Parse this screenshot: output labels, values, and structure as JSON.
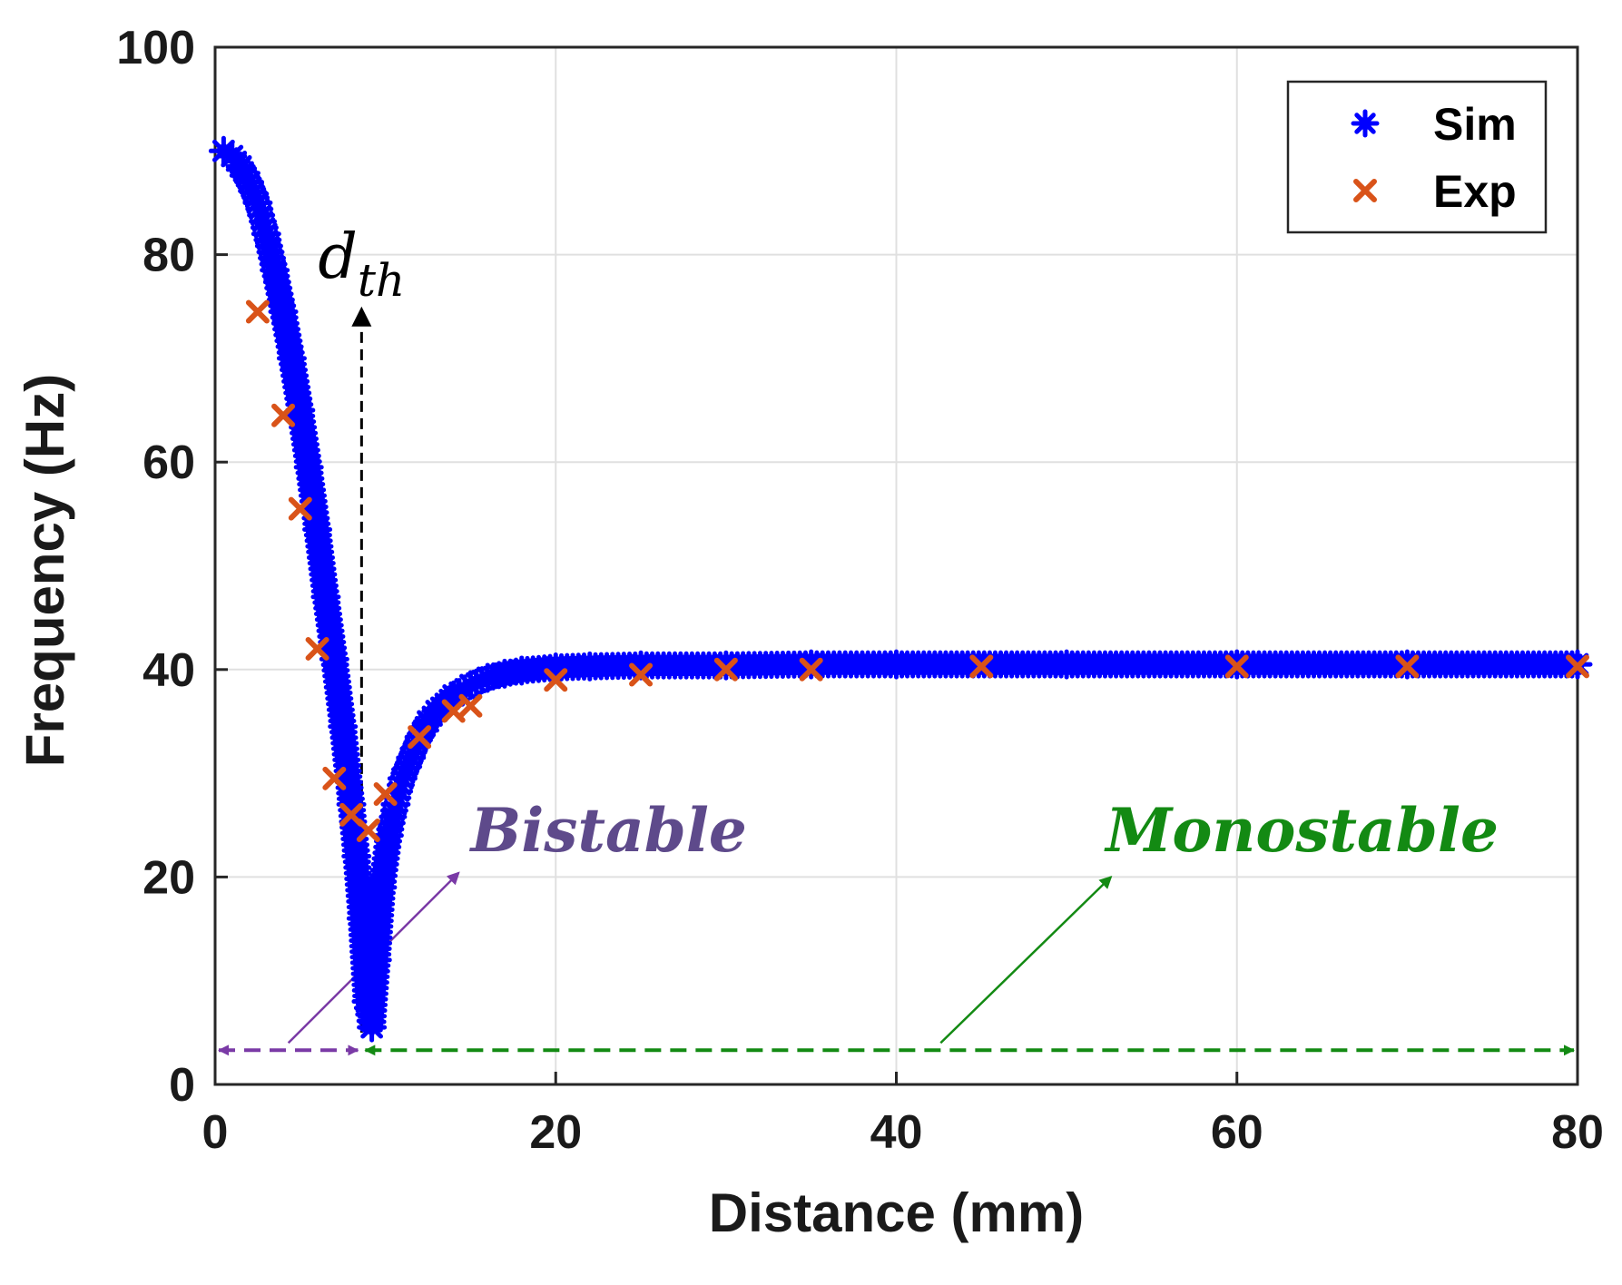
{
  "chart_data": {
    "type": "scatter",
    "title": "",
    "xlabel": "Distance (mm)",
    "ylabel": "Frequency (Hz)",
    "xlim": [
      0,
      80
    ],
    "ylim": [
      0,
      100
    ],
    "xticks": [
      "0",
      "20",
      "40",
      "60",
      "80"
    ],
    "yticks": [
      "0",
      "20",
      "40",
      "60",
      "80",
      "100"
    ],
    "grid": true,
    "legend": {
      "position": "top-right",
      "entries": [
        "Sim",
        "Exp"
      ]
    },
    "series": [
      {
        "name": "Sim",
        "marker": "asterisk",
        "color": "#0000ff",
        "x": [
          0.5,
          1.0,
          1.5,
          2.0,
          2.5,
          3.0,
          3.5,
          4.0,
          4.5,
          5.0,
          5.5,
          6.0,
          6.5,
          7.0,
          7.5,
          8.0,
          8.3,
          8.6,
          8.9,
          9.2,
          9.5,
          9.8,
          10.2,
          10.6,
          11.0,
          11.5,
          12.0,
          12.5,
          13.0,
          14.0,
          15.0,
          16.0,
          17.0,
          18.0,
          20.0,
          22.0,
          25.0,
          30.0,
          35.0,
          40.0,
          50.0,
          60.0,
          70.0,
          80.0
        ],
        "y": [
          90,
          89.5,
          88.5,
          87,
          85,
          82,
          78.5,
          74.5,
          70,
          65,
          59.5,
          53.5,
          47,
          41,
          34.5,
          27,
          22,
          16,
          8,
          5.5,
          12,
          19,
          24,
          27,
          29.5,
          31.5,
          33.5,
          35,
          36,
          37.5,
          38.5,
          39.2,
          39.6,
          39.9,
          40.2,
          40.3,
          40.4,
          40.4,
          40.5,
          40.5,
          40.5,
          40.5,
          40.5,
          40.5
        ]
      },
      {
        "name": "Exp",
        "marker": "x",
        "color": "#d95319",
        "x": [
          2.5,
          4.0,
          5.0,
          6.0,
          7.0,
          8.0,
          9.0,
          10.0,
          12.0,
          14.0,
          15.0,
          20.0,
          25.0,
          30.0,
          35.0,
          45.0,
          60.0,
          70.0,
          80.0
        ],
        "y": [
          74.5,
          64.5,
          55.5,
          42,
          29.5,
          26,
          24.5,
          28,
          33.5,
          36,
          36.5,
          39,
          39.5,
          40,
          40,
          40.3,
          40.3,
          40.3,
          40.3
        ]
      }
    ],
    "annotations": {
      "threshold": {
        "label_main": "d",
        "label_sub": "th",
        "x": 8.6,
        "y_from": 5,
        "y_to": 75
      },
      "bistable": {
        "label": "Bistable",
        "color": "#5e4a8b",
        "x_from": 0,
        "x_to": 8.6,
        "y": 3.3
      },
      "monostable": {
        "label": "Monostable",
        "color": "#138a13",
        "x_from": 8.6,
        "x_to": 80,
        "y": 3.3
      }
    }
  }
}
